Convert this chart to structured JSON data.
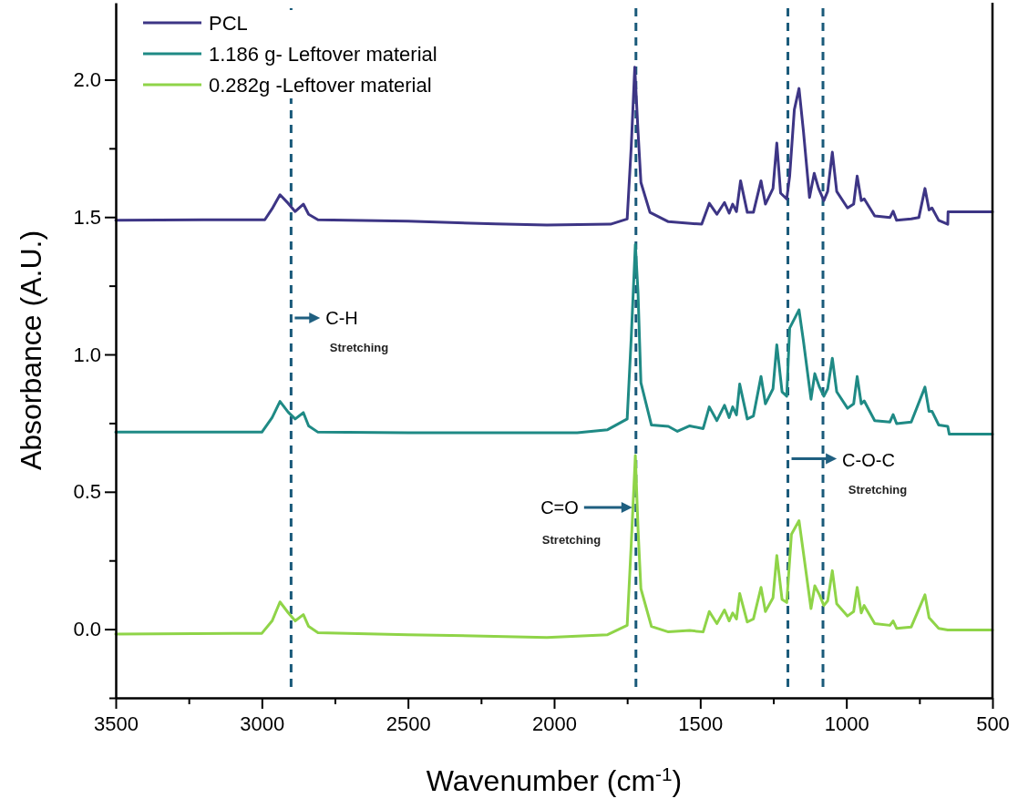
{
  "chart_data": {
    "type": "line",
    "xlabel": "Wavenumber (cm$^{-1}$)",
    "ylabel": "Absorbance (A.U.)",
    "xlim": [
      3500,
      500
    ],
    "ylim": [
      -0.25,
      2.28
    ],
    "xticks": [
      3500,
      {
        "value": 3250,
        "label": null
      },
      3000,
      {
        "value": 2750,
        "label": null
      },
      2500,
      {
        "value": 2250,
        "label": null
      },
      2000,
      {
        "value": 1750,
        "label": null
      },
      1500,
      {
        "value": 1250,
        "label": null
      },
      1000,
      {
        "value": 750,
        "label": null
      },
      500
    ],
    "yticks": [
      {
        "value": -0.25,
        "label": null
      },
      {
        "value": 0,
        "label": "0.0"
      },
      {
        "value": 0.25,
        "label": null
      },
      {
        "value": 0.5,
        "label": "0.5"
      },
      {
        "value": 0.75,
        "label": null
      },
      {
        "value": 1,
        "label": "1.0"
      },
      {
        "value": 1.25,
        "label": null
      },
      {
        "value": 1.5,
        "label": "1.5"
      },
      {
        "value": 1.75,
        "label": null
      },
      {
        "value": 2,
        "label": "2.0"
      }
    ],
    "grid": false,
    "legend": "top left",
    "marker": "none",
    "line_style": "solid",
    "series": [
      {
        "name": "PCL",
        "color": "#3d3585",
        "x": [
          3500,
          3200,
          2990,
          2965,
          2938,
          2910,
          2886,
          2858,
          2840,
          2808,
          2500,
          2200,
          2025,
          1807,
          1750,
          1736,
          1724,
          1713,
          1703,
          1672,
          1609,
          1495,
          1469,
          1443,
          1417,
          1401,
          1389,
          1376,
          1362,
          1339,
          1318,
          1292,
          1277,
          1251,
          1238,
          1225,
          1204,
          1194,
          1178,
          1162,
          1147,
          1126,
          1110,
          1095,
          1077,
          1064,
          1048,
          1033,
          996,
          975,
          963,
          949,
          939,
          903,
          851,
          840,
          828,
          778,
          752,
          731,
          717,
          707,
          684,
          653,
          652,
          500
        ],
        "values": [
          1.488,
          1.49,
          1.49,
          1.53,
          1.581,
          1.55,
          1.52,
          1.547,
          1.51,
          1.49,
          1.485,
          1.475,
          1.471,
          1.474,
          1.493,
          1.758,
          2.045,
          1.814,
          1.626,
          1.517,
          1.483,
          1.474,
          1.55,
          1.51,
          1.553,
          1.514,
          1.547,
          1.52,
          1.632,
          1.517,
          1.517,
          1.632,
          1.547,
          1.604,
          1.769,
          1.587,
          1.566,
          1.649,
          1.891,
          1.968,
          1.814,
          1.571,
          1.659,
          1.604,
          1.56,
          1.593,
          1.736,
          1.593,
          1.533,
          1.547,
          1.649,
          1.56,
          1.566,
          1.504,
          1.498,
          1.521,
          1.488,
          1.493,
          1.498,
          1.604,
          1.526,
          1.533,
          1.488,
          1.474,
          1.519,
          1.519
        ]
      },
      {
        "name": "1.186 g- Leftover material",
        "color": "#1f8a85",
        "x": [
          3500,
          3000,
          2965,
          2938,
          2910,
          2886,
          2858,
          2840,
          2808,
          2500,
          2025,
          1921,
          1817,
          1750,
          1736,
          1722,
          1713,
          1703,
          1667,
          1609,
          1578,
          1536,
          1490,
          1469,
          1443,
          1417,
          1401,
          1389,
          1376,
          1365,
          1339,
          1318,
          1292,
          1277,
          1251,
          1238,
          1220,
          1204,
          1194,
          1162,
          1147,
          1121,
          1108,
          1092,
          1077,
          1064,
          1048,
          1033,
          996,
          975,
          963,
          949,
          939,
          903,
          851,
          840,
          828,
          778,
          731,
          717,
          707,
          684,
          653,
          648,
          500
        ],
        "values": [
          0.717,
          0.717,
          0.77,
          0.829,
          0.79,
          0.765,
          0.788,
          0.74,
          0.717,
          0.715,
          0.715,
          0.715,
          0.726,
          0.765,
          1.063,
          1.4,
          1.228,
          0.897,
          0.743,
          0.738,
          0.72,
          0.74,
          0.73,
          0.809,
          0.759,
          0.815,
          0.77,
          0.809,
          0.78,
          0.892,
          0.765,
          0.776,
          0.92,
          0.82,
          0.875,
          1.035,
          0.864,
          0.848,
          1.096,
          1.162,
          1.05,
          0.837,
          0.93,
          0.881,
          0.848,
          0.875,
          0.986,
          0.864,
          0.804,
          0.82,
          0.92,
          0.82,
          0.831,
          0.759,
          0.754,
          0.781,
          0.748,
          0.754,
          0.881,
          0.793,
          0.793,
          0.743,
          0.738,
          0.71,
          0.71
        ]
      },
      {
        "name": "0.282g -Leftover material",
        "color": "#8fd448",
        "x": [
          3500,
          3000,
          2965,
          2938,
          2910,
          2886,
          2858,
          2840,
          2808,
          2500,
          2025,
          1817,
          1750,
          1736,
          1722,
          1713,
          1703,
          1667,
          1609,
          1536,
          1490,
          1469,
          1443,
          1417,
          1401,
          1389,
          1376,
          1365,
          1339,
          1318,
          1292,
          1277,
          1251,
          1238,
          1220,
          1204,
          1188,
          1162,
          1147,
          1121,
          1108,
          1092,
          1077,
          1064,
          1048,
          1033,
          996,
          975,
          963,
          949,
          939,
          903,
          851,
          840,
          828,
          778,
          731,
          717,
          684,
          653,
          500
        ],
        "values": [
          -0.018,
          -0.015,
          0.03,
          0.099,
          0.06,
          0.03,
          0.053,
          0.01,
          -0.013,
          -0.02,
          -0.03,
          -0.02,
          0.014,
          0.312,
          0.632,
          0.368,
          0.147,
          0.01,
          -0.01,
          -0.005,
          -0.01,
          0.064,
          0.02,
          0.07,
          0.03,
          0.059,
          0.037,
          0.13,
          0.026,
          0.037,
          0.152,
          0.064,
          0.114,
          0.268,
          0.108,
          0.097,
          0.345,
          0.395,
          0.279,
          0.075,
          0.158,
          0.125,
          0.086,
          0.103,
          0.213,
          0.092,
          0.048,
          0.064,
          0.152,
          0.059,
          0.086,
          0.02,
          0.014,
          0.03,
          0.003,
          0.008,
          0.125,
          0.042,
          0.003,
          -0.003,
          -0.003
        ]
      }
    ],
    "ref_lines": [
      {
        "axis": "x",
        "value": 2900,
        "color": "#1a5a7a",
        "line_style": "dashed"
      },
      {
        "axis": "x",
        "value": 1720,
        "color": "#1a5a7a",
        "line_style": "dashed"
      },
      {
        "axis": "x",
        "value": 1200,
        "color": "#1a5a7a",
        "line_style": "dashed"
      },
      {
        "axis": "x",
        "value": 1080,
        "color": "#1a5a7a",
        "line_style": "dashed"
      }
    ],
    "annotations": [
      "C-H",
      "Stretching",
      "C=O",
      "Stretching",
      {
        "text": "C-O-C",
        "x": 1200,
        "y": 0.62
      },
      "Stretching"
    ]
  }
}
